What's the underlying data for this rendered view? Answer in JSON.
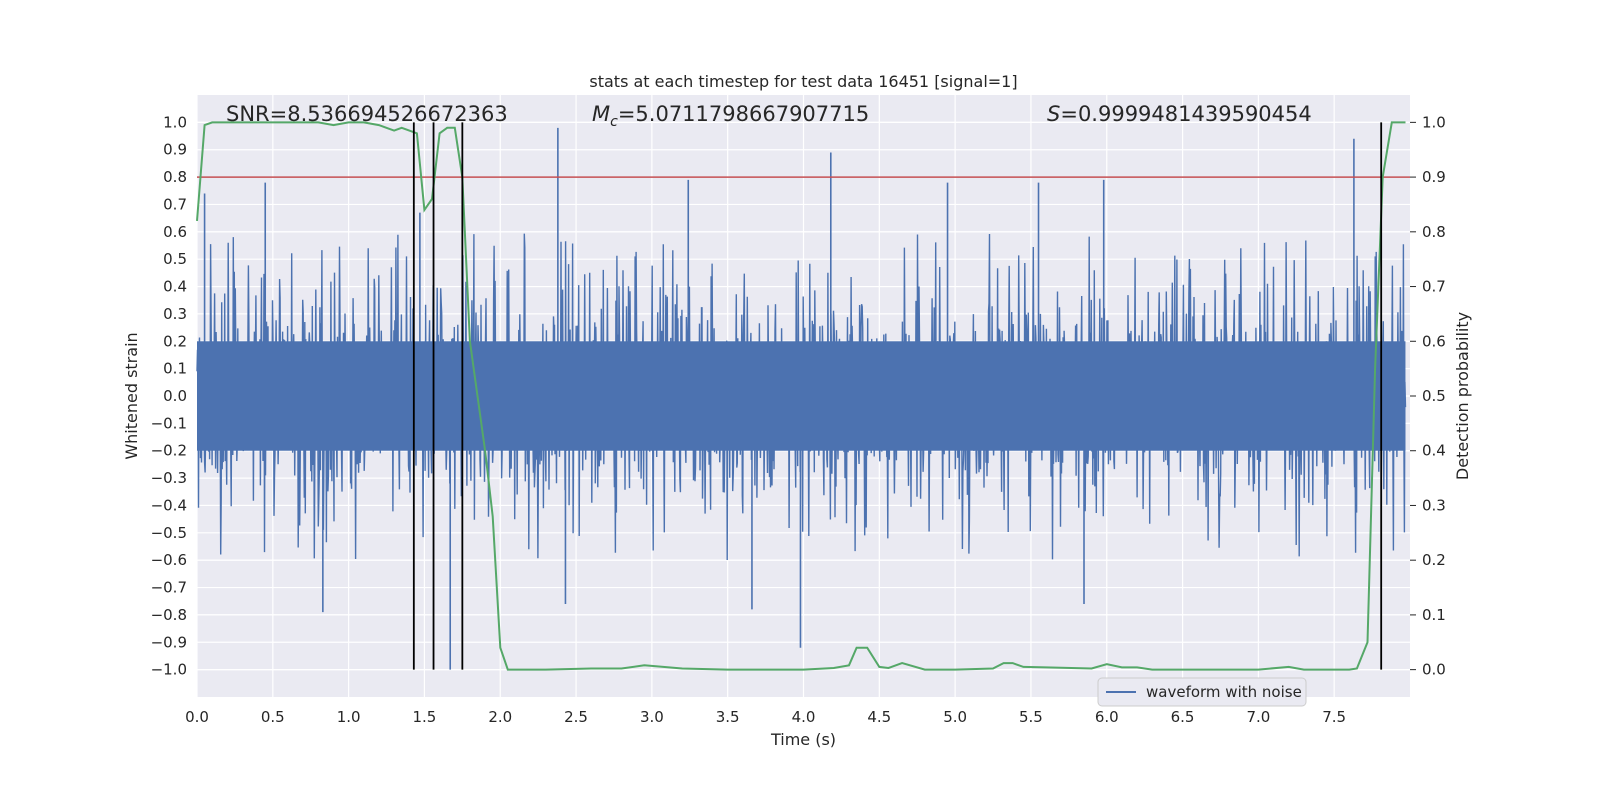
{
  "chart_data": {
    "type": "line",
    "title": "stats at each timestep for test data 16451 [signal=1]",
    "xlabel": "Time (s)",
    "ylabel_left": "Whitened strain",
    "ylabel_right": "Detection probability",
    "xlim": [
      0.0,
      8.0
    ],
    "ylim_left": [
      -1.1,
      1.1
    ],
    "ylim_right": [
      -0.05,
      1.05
    ],
    "x_ticks": [
      "0.0",
      "0.5",
      "1.0",
      "1.5",
      "2.0",
      "2.5",
      "3.0",
      "3.5",
      "4.0",
      "4.5",
      "5.0",
      "5.5",
      "6.0",
      "6.5",
      "7.0",
      "7.5"
    ],
    "y_left_ticks": [
      "1.0",
      "0.9",
      "0.8",
      "0.7",
      "0.6",
      "0.5",
      "0.4",
      "0.3",
      "0.2",
      "0.1",
      "0.0",
      "-0.1",
      "-0.2",
      "-0.3",
      "-0.4",
      "-0.5",
      "-0.6",
      "-0.7",
      "-0.8",
      "-0.9",
      "-1.0"
    ],
    "y_right_ticks": [
      "1.0",
      "0.9",
      "0.8",
      "0.7",
      "0.6",
      "0.5",
      "0.4",
      "0.3",
      "0.2",
      "0.1",
      "0.0"
    ],
    "grid": true,
    "legend_position": "lower-right",
    "colors": {
      "background": "#eaeaf2",
      "grid": "#ffffff",
      "waveform": "#4c72b0",
      "probability": "#55a868",
      "threshold": "#c44e52",
      "markers": "#000000"
    },
    "annotations": {
      "snr": "SNR=8.536694526672363",
      "mc_symbol": "M",
      "mc_sub": "c",
      "mc_value": "=5.0711798667907715",
      "s_symbol": "S",
      "s_value": "=0.9999481439590454"
    },
    "series": [
      {
        "name": "waveform with noise",
        "axis": "left",
        "style": "dense noise waveform",
        "sampling": "continuous 0.0–8.0 s",
        "typical_amplitude": 0.45,
        "spikes": [
          {
            "x": 0.05,
            "y": 0.74
          },
          {
            "x": 0.45,
            "y": 0.78
          },
          {
            "x": 0.83,
            "y": -0.79
          },
          {
            "x": 1.47,
            "y": 0.67
          },
          {
            "x": 1.67,
            "y": -1.0
          },
          {
            "x": 2.38,
            "y": 0.98
          },
          {
            "x": 2.43,
            "y": -0.76
          },
          {
            "x": 3.24,
            "y": 0.79
          },
          {
            "x": 3.66,
            "y": -0.78
          },
          {
            "x": 3.98,
            "y": -0.92
          },
          {
            "x": 4.18,
            "y": 0.89
          },
          {
            "x": 4.95,
            "y": 0.78
          },
          {
            "x": 5.55,
            "y": 0.78
          },
          {
            "x": 5.98,
            "y": 0.79
          },
          {
            "x": 5.85,
            "y": -0.76
          },
          {
            "x": 7.63,
            "y": 0.94
          }
        ]
      },
      {
        "name": "",
        "axis": "right",
        "x": [
          0.0,
          0.05,
          0.1,
          0.2,
          0.3,
          0.4,
          0.5,
          0.6,
          0.7,
          0.8,
          0.9,
          1.0,
          1.1,
          1.2,
          1.3,
          1.35,
          1.4,
          1.45,
          1.5,
          1.55,
          1.6,
          1.65,
          1.7,
          1.75,
          1.8,
          1.9,
          1.95,
          2.0,
          2.05,
          2.1,
          2.3,
          2.6,
          2.8,
          2.95,
          3.2,
          3.5,
          3.8,
          4.0,
          4.2,
          4.3,
          4.35,
          4.42,
          4.5,
          4.56,
          4.65,
          4.8,
          5.0,
          5.25,
          5.32,
          5.38,
          5.45,
          5.6,
          5.9,
          6.0,
          6.1,
          6.2,
          6.3,
          6.5,
          7.0,
          7.2,
          7.3,
          7.6,
          7.65,
          7.72,
          7.77,
          7.82,
          7.88,
          7.97
        ],
        "y": [
          0.82,
          0.995,
          1.0,
          1.0,
          1.0,
          1.0,
          1.0,
          1.0,
          1.0,
          1.0,
          0.995,
          1.0,
          1.0,
          0.995,
          0.985,
          0.99,
          0.985,
          0.98,
          0.84,
          0.86,
          0.98,
          0.99,
          0.99,
          0.9,
          0.6,
          0.4,
          0.28,
          0.04,
          0.0,
          0.0,
          0.0,
          0.002,
          0.002,
          0.008,
          0.002,
          0.0,
          0.0,
          0.0,
          0.003,
          0.008,
          0.04,
          0.04,
          0.005,
          0.003,
          0.012,
          0.0,
          0.0,
          0.002,
          0.012,
          0.012,
          0.005,
          0.004,
          0.002,
          0.01,
          0.004,
          0.004,
          0.0,
          0.0,
          0.0,
          0.005,
          0.0,
          0.0,
          0.002,
          0.05,
          0.55,
          0.9,
          1.0,
          1.0
        ]
      }
    ],
    "threshold": {
      "axis": "right",
      "y": 0.9
    },
    "vertical_lines": [
      1.43,
      1.56,
      1.75,
      7.81
    ],
    "vertical_lines_range_right": [
      0.0,
      1.0
    ]
  }
}
